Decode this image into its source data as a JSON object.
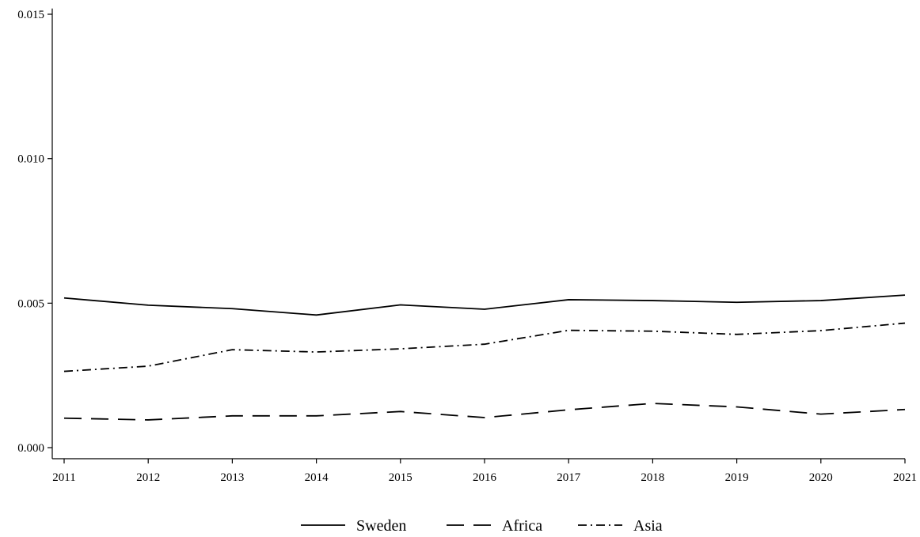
{
  "chart_data": {
    "type": "line",
    "title": "",
    "xlabel": "",
    "ylabel": "",
    "x": [
      2011,
      2012,
      2013,
      2014,
      2015,
      2016,
      2017,
      2018,
      2019,
      2020,
      2021
    ],
    "xticks": [
      "2011",
      "2012",
      "2013",
      "2014",
      "2015",
      "2016",
      "2017",
      "2018",
      "2019",
      "2020",
      "2021"
    ],
    "ylim": [
      0,
      0.0152
    ],
    "yticks": [
      0,
      0.005,
      0.01,
      0.015
    ],
    "ytick_labels": [
      "0.000",
      "0.005",
      "0.010",
      "0.015"
    ],
    "grid": false,
    "legend_position": "bottom",
    "series": [
      {
        "name": "Sweden",
        "dash": "solid",
        "values": [
          0.00518,
          0.00493,
          0.00481,
          0.00459,
          0.00494,
          0.00479,
          0.00512,
          0.00509,
          0.00503,
          0.00509,
          0.00528
        ]
      },
      {
        "name": "Africa",
        "dash": "dashed",
        "values": [
          0.00102,
          0.00096,
          0.0011,
          0.0011,
          0.00125,
          0.00104,
          0.00131,
          0.00153,
          0.00141,
          0.00116,
          0.00132
        ]
      },
      {
        "name": "Asia",
        "dash": "dash-dot",
        "values": [
          0.00264,
          0.00282,
          0.00339,
          0.00331,
          0.00342,
          0.00358,
          0.00406,
          0.00403,
          0.00392,
          0.00405,
          0.00431
        ]
      }
    ]
  }
}
